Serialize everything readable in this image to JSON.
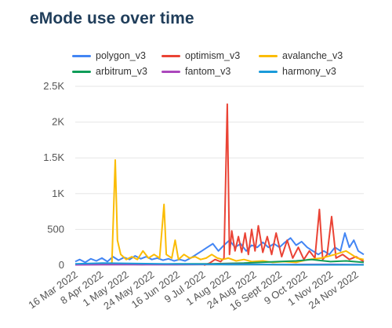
{
  "chart_data": {
    "type": "line",
    "title": "eMode use over time",
    "xlabel": "",
    "ylabel": "",
    "ylim": [
      0,
      2500
    ],
    "y_ticks": [
      0,
      500,
      1000,
      1500,
      2000,
      2500
    ],
    "y_tick_labels": [
      "0",
      "500",
      "1K",
      "1.5K",
      "2K",
      "2.5K"
    ],
    "x_range": [
      "2022-03-16",
      "2022-12-01"
    ],
    "x_tick_labels": [
      "16 Mar 2022",
      "8 Apr 2022",
      "1 May 2022",
      "24 May 2022",
      "16 Jun 2022",
      "9 Jul 2022",
      "1 Aug 2022",
      "24 Aug 2022",
      "16 Sept 2022",
      "9 Oct 2022",
      "1 Nov 2022",
      "24 Nov 2022"
    ],
    "x_tick_dates": [
      "2022-03-16",
      "2022-04-08",
      "2022-05-01",
      "2022-05-24",
      "2022-06-16",
      "2022-07-09",
      "2022-08-01",
      "2022-08-24",
      "2022-09-16",
      "2022-10-09",
      "2022-11-01",
      "2022-11-24"
    ],
    "grid": true,
    "legend_position": "top",
    "series": [
      {
        "name": "polygon_v3",
        "color": "#4285f4",
        "points": [
          [
            "2022-03-16",
            50
          ],
          [
            "2022-03-20",
            80
          ],
          [
            "2022-03-25",
            40
          ],
          [
            "2022-03-30",
            90
          ],
          [
            "2022-04-04",
            60
          ],
          [
            "2022-04-09",
            100
          ],
          [
            "2022-04-14",
            50
          ],
          [
            "2022-04-19",
            120
          ],
          [
            "2022-04-24",
            70
          ],
          [
            "2022-04-29",
            110
          ],
          [
            "2022-05-04",
            80
          ],
          [
            "2022-05-09",
            130
          ],
          [
            "2022-05-14",
            90
          ],
          [
            "2022-05-19",
            120
          ],
          [
            "2022-05-24",
            80
          ],
          [
            "2022-05-29",
            100
          ],
          [
            "2022-06-03",
            70
          ],
          [
            "2022-06-08",
            90
          ],
          [
            "2022-06-13",
            60
          ],
          [
            "2022-06-18",
            80
          ],
          [
            "2022-06-23",
            60
          ],
          [
            "2022-06-28",
            100
          ],
          [
            "2022-07-03",
            150
          ],
          [
            "2022-07-08",
            200
          ],
          [
            "2022-07-13",
            250
          ],
          [
            "2022-07-18",
            300
          ],
          [
            "2022-07-23",
            200
          ],
          [
            "2022-07-28",
            280
          ],
          [
            "2022-08-02",
            350
          ],
          [
            "2022-08-07",
            250
          ],
          [
            "2022-08-12",
            300
          ],
          [
            "2022-08-17",
            200
          ],
          [
            "2022-08-22",
            280
          ],
          [
            "2022-08-27",
            250
          ],
          [
            "2022-09-01",
            320
          ],
          [
            "2022-09-06",
            250
          ],
          [
            "2022-09-11",
            300
          ],
          [
            "2022-09-16",
            250
          ],
          [
            "2022-09-21",
            320
          ],
          [
            "2022-09-26",
            380
          ],
          [
            "2022-10-01",
            280
          ],
          [
            "2022-10-06",
            330
          ],
          [
            "2022-10-11",
            250
          ],
          [
            "2022-10-16",
            200
          ],
          [
            "2022-10-21",
            150
          ],
          [
            "2022-10-26",
            200
          ],
          [
            "2022-10-31",
            150
          ],
          [
            "2022-11-05",
            250
          ],
          [
            "2022-11-10",
            200
          ],
          [
            "2022-11-14",
            450
          ],
          [
            "2022-11-18",
            250
          ],
          [
            "2022-11-22",
            350
          ],
          [
            "2022-11-26",
            200
          ],
          [
            "2022-12-01",
            150
          ]
        ]
      },
      {
        "name": "optimism_v3",
        "color": "#ea4335",
        "points": [
          [
            "2022-07-10",
            0
          ],
          [
            "2022-07-15",
            30
          ],
          [
            "2022-07-20",
            80
          ],
          [
            "2022-07-25",
            50
          ],
          [
            "2022-07-28",
            100
          ],
          [
            "2022-07-31",
            2250
          ],
          [
            "2022-08-02",
            150
          ],
          [
            "2022-08-04",
            480
          ],
          [
            "2022-08-07",
            200
          ],
          [
            "2022-08-10",
            400
          ],
          [
            "2022-08-13",
            180
          ],
          [
            "2022-08-16",
            450
          ],
          [
            "2022-08-19",
            150
          ],
          [
            "2022-08-22",
            500
          ],
          [
            "2022-08-25",
            200
          ],
          [
            "2022-08-28",
            550
          ],
          [
            "2022-09-01",
            180
          ],
          [
            "2022-09-05",
            400
          ],
          [
            "2022-09-09",
            150
          ],
          [
            "2022-09-13",
            450
          ],
          [
            "2022-09-18",
            120
          ],
          [
            "2022-09-23",
            350
          ],
          [
            "2022-09-28",
            100
          ],
          [
            "2022-10-03",
            250
          ],
          [
            "2022-10-08",
            80
          ],
          [
            "2022-10-13",
            200
          ],
          [
            "2022-10-18",
            100
          ],
          [
            "2022-10-22",
            780
          ],
          [
            "2022-10-25",
            80
          ],
          [
            "2022-10-29",
            150
          ],
          [
            "2022-11-02",
            680
          ],
          [
            "2022-11-06",
            100
          ],
          [
            "2022-11-12",
            150
          ],
          [
            "2022-11-18",
            80
          ],
          [
            "2022-11-24",
            120
          ],
          [
            "2022-12-01",
            50
          ]
        ]
      },
      {
        "name": "avalanche_v3",
        "color": "#fbbc04",
        "points": [
          [
            "2022-03-16",
            10
          ],
          [
            "2022-03-25",
            20
          ],
          [
            "2022-04-05",
            15
          ],
          [
            "2022-04-12",
            20
          ],
          [
            "2022-04-18",
            30
          ],
          [
            "2022-04-21",
            1470
          ],
          [
            "2022-04-23",
            350
          ],
          [
            "2022-04-26",
            150
          ],
          [
            "2022-05-01",
            80
          ],
          [
            "2022-05-06",
            120
          ],
          [
            "2022-05-11",
            80
          ],
          [
            "2022-05-16",
            200
          ],
          [
            "2022-05-21",
            100
          ],
          [
            "2022-05-26",
            150
          ],
          [
            "2022-05-31",
            100
          ],
          [
            "2022-06-04",
            850
          ],
          [
            "2022-06-06",
            150
          ],
          [
            "2022-06-11",
            100
          ],
          [
            "2022-06-14",
            350
          ],
          [
            "2022-06-17",
            80
          ],
          [
            "2022-06-22",
            150
          ],
          [
            "2022-06-27",
            100
          ],
          [
            "2022-07-02",
            120
          ],
          [
            "2022-07-07",
            80
          ],
          [
            "2022-07-12",
            100
          ],
          [
            "2022-07-17",
            150
          ],
          [
            "2022-07-22",
            100
          ],
          [
            "2022-07-27",
            80
          ],
          [
            "2022-08-01",
            100
          ],
          [
            "2022-08-08",
            60
          ],
          [
            "2022-08-15",
            80
          ],
          [
            "2022-08-22",
            50
          ],
          [
            "2022-09-01",
            60
          ],
          [
            "2022-09-10",
            40
          ],
          [
            "2022-09-20",
            50
          ],
          [
            "2022-10-01",
            40
          ],
          [
            "2022-10-12",
            80
          ],
          [
            "2022-10-24",
            100
          ],
          [
            "2022-11-05",
            150
          ],
          [
            "2022-11-15",
            200
          ],
          [
            "2022-11-25",
            100
          ],
          [
            "2022-12-01",
            80
          ]
        ]
      },
      {
        "name": "arbitrum_v3",
        "color": "#0f9d58",
        "points": [
          [
            "2022-03-16",
            10
          ],
          [
            "2022-04-15",
            15
          ],
          [
            "2022-05-15",
            10
          ],
          [
            "2022-06-15",
            20
          ],
          [
            "2022-07-15",
            20
          ],
          [
            "2022-08-15",
            30
          ],
          [
            "2022-09-15",
            50
          ],
          [
            "2022-10-01",
            60
          ],
          [
            "2022-10-15",
            80
          ],
          [
            "2022-11-01",
            50
          ],
          [
            "2022-11-15",
            60
          ],
          [
            "2022-12-01",
            40
          ]
        ]
      },
      {
        "name": "fantom_v3",
        "color": "#ab47bc",
        "points": [
          [
            "2022-03-16",
            5
          ],
          [
            "2022-05-01",
            10
          ],
          [
            "2022-06-15",
            8
          ],
          [
            "2022-08-01",
            15
          ],
          [
            "2022-09-15",
            10
          ],
          [
            "2022-11-01",
            12
          ],
          [
            "2022-12-01",
            8
          ]
        ]
      },
      {
        "name": "harmony_v3",
        "color": "#1a9ad9",
        "points": [
          [
            "2022-03-16",
            20
          ],
          [
            "2022-04-10",
            30
          ],
          [
            "2022-05-05",
            25
          ],
          [
            "2022-06-01",
            20
          ],
          [
            "2022-07-01",
            15
          ],
          [
            "2022-08-01",
            10
          ],
          [
            "2022-09-01",
            10
          ],
          [
            "2022-10-01",
            5
          ],
          [
            "2022-11-01",
            5
          ],
          [
            "2022-12-01",
            5
          ]
        ]
      }
    ]
  }
}
